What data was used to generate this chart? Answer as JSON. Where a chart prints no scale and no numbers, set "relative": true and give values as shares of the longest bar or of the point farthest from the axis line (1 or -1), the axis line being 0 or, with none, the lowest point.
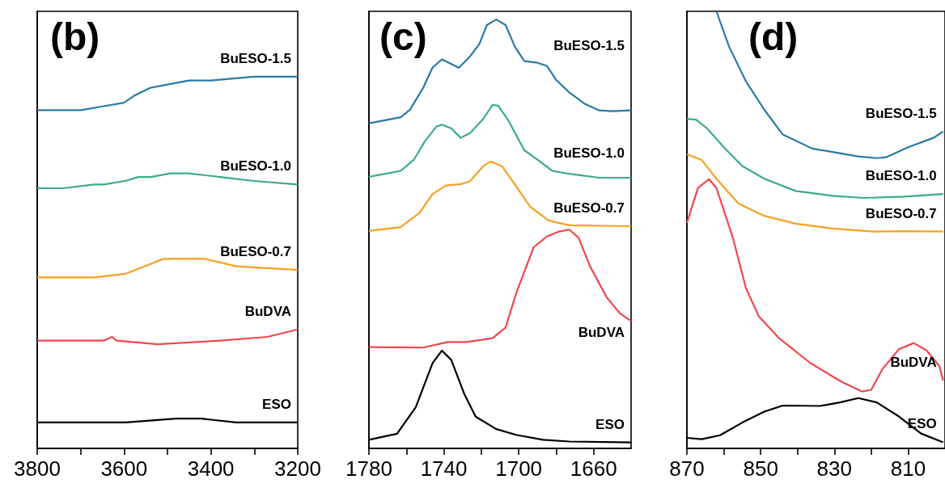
{
  "chart_data": [
    {
      "type": "line",
      "title": "(b)",
      "relative": true,
      "tick_labels": "x",
      "xlim": [
        3800,
        3200
      ],
      "xticks": [
        3800,
        {
          "value": 3700,
          "label": null
        },
        3600,
        {
          "value": 3500,
          "label": null
        },
        3400,
        {
          "value": 3300,
          "label": null
        },
        3200
      ],
      "series": [
        {
          "name": "BuESO-1.5",
          "color": "#2a7aa5",
          "x": [
            3800,
            3750,
            3700,
            3650,
            3600,
            3575,
            3540,
            3495,
            3450,
            3400,
            3300,
            3250,
            3200
          ],
          "values": [
            0.91,
            0.91,
            0.91,
            0.92,
            0.93,
            0.95,
            0.97,
            0.98,
            0.99,
            0.99,
            1.0,
            1.0,
            1.0
          ]
        },
        {
          "name": "BuESO-1.0",
          "color": "#3aab8b",
          "x": [
            3800,
            3741,
            3668,
            3646,
            3596,
            3567,
            3538,
            3494,
            3451,
            3378,
            3306,
            3200
          ],
          "values": [
            0.7,
            0.7,
            0.71,
            0.71,
            0.72,
            0.73,
            0.73,
            0.74,
            0.74,
            0.73,
            0.72,
            0.71
          ]
        },
        {
          "name": "BuESO-0.7",
          "color": "#f7a024",
          "x": [
            3800,
            3668,
            3596,
            3552,
            3509,
            3451,
            3415,
            3342,
            3200
          ],
          "values": [
            0.46,
            0.46,
            0.47,
            0.49,
            0.51,
            0.51,
            0.51,
            0.49,
            0.48
          ]
        },
        {
          "name": "BuDVA",
          "color": "#f2474c",
          "x": [
            3800,
            3704,
            3646,
            3628,
            3617,
            3523,
            3378,
            3270,
            3200
          ],
          "values": [
            0.29,
            0.29,
            0.29,
            0.3,
            0.29,
            0.28,
            0.29,
            0.3,
            0.32
          ]
        },
        {
          "name": "ESO",
          "color": "#000000",
          "x": [
            3800,
            3596,
            3480,
            3422,
            3342,
            3200
          ],
          "values": [
            0.07,
            0.07,
            0.08,
            0.08,
            0.07,
            0.07
          ]
        }
      ]
    },
    {
      "type": "line",
      "title": "(c)",
      "relative": true,
      "tick_labels": "x",
      "xlim": [
        1780,
        1640
      ],
      "xticks": [
        1780,
        {
          "value": 1760,
          "label": null
        },
        1740,
        {
          "value": 1720,
          "label": null
        },
        1700,
        {
          "value": 1680,
          "label": null
        },
        1660
      ],
      "series": [
        {
          "name": "BuESO-1.5",
          "color": "#2a7aa5",
          "x": [
            1780,
            1763,
            1758,
            1751,
            1746,
            1741,
            1736,
            1732,
            1726,
            1721,
            1717,
            1712,
            1707,
            1702,
            1697,
            1690,
            1685,
            1680,
            1673,
            1665,
            1657,
            1650,
            1640
          ],
          "values": [
            0.758,
            0.772,
            0.79,
            0.841,
            0.888,
            0.907,
            0.896,
            0.887,
            0.914,
            0.943,
            0.987,
            1.0,
            0.987,
            0.936,
            0.903,
            0.899,
            0.892,
            0.859,
            0.83,
            0.804,
            0.788,
            0.786,
            0.788
          ]
        },
        {
          "name": "BuESO-1.0",
          "color": "#3aab8b",
          "x": [
            1780,
            1763,
            1756,
            1750,
            1744,
            1741,
            1736,
            1731,
            1726,
            1719,
            1714,
            1711,
            1706,
            1697,
            1690,
            1682,
            1673,
            1657,
            1640
          ],
          "values": [
            0.633,
            0.647,
            0.673,
            0.717,
            0.75,
            0.755,
            0.746,
            0.724,
            0.735,
            0.768,
            0.801,
            0.799,
            0.768,
            0.695,
            0.673,
            0.647,
            0.64,
            0.631,
            0.631
          ]
        },
        {
          "name": "BuESO-0.7",
          "color": "#f7a024",
          "x": [
            1780,
            1763,
            1753,
            1746,
            1739,
            1731,
            1726,
            1719,
            1715,
            1709,
            1702,
            1694,
            1684,
            1673,
            1640
          ],
          "values": [
            0.507,
            0.516,
            0.549,
            0.593,
            0.613,
            0.616,
            0.623,
            0.658,
            0.669,
            0.658,
            0.615,
            0.564,
            0.531,
            0.52,
            0.518
          ]
        },
        {
          "name": "BuDVA",
          "color": "#f2474c",
          "x": [
            1780,
            1751,
            1738,
            1728,
            1714,
            1707,
            1701,
            1692,
            1685,
            1679,
            1673,
            1668,
            1662,
            1653,
            1646,
            1640
          ],
          "values": [
            0.236,
            0.235,
            0.248,
            0.248,
            0.257,
            0.282,
            0.366,
            0.469,
            0.494,
            0.505,
            0.51,
            0.491,
            0.425,
            0.352,
            0.315,
            0.297
          ]
        },
        {
          "name": "ESO",
          "color": "#000000",
          "x": [
            1780,
            1765,
            1755,
            1746,
            1741,
            1736,
            1729,
            1723,
            1712,
            1701,
            1687,
            1673,
            1640
          ],
          "values": [
            0.02,
            0.034,
            0.096,
            0.199,
            0.228,
            0.206,
            0.126,
            0.074,
            0.045,
            0.031,
            0.02,
            0.016,
            0.014
          ]
        }
      ]
    },
    {
      "type": "line",
      "title": "(d)",
      "relative": true,
      "tick_labels": "x",
      "xlim": [
        870,
        800
      ],
      "xticks": [
        870,
        {
          "value": 860,
          "label": null
        },
        850,
        {
          "value": 840,
          "label": null
        },
        830,
        {
          "value": 820,
          "label": null
        },
        810
      ],
      "series": [
        {
          "name": "BuESO-1.5",
          "color": "#2a7aa5",
          "x": [
            862,
            858.5,
            854,
            849,
            844,
            836,
            830.5,
            823.5,
            818.5,
            816,
            810,
            803,
            800.5
          ],
          "values": [
            1.0,
            0.918,
            0.84,
            0.775,
            0.718,
            0.686,
            0.678,
            0.668,
            0.664,
            0.666,
            0.689,
            0.711,
            0.725
          ]
        },
        {
          "name": "BuESO-1.0",
          "color": "#3aab8b",
          "x": [
            870,
            867.5,
            864.5,
            860,
            855,
            849,
            840.5,
            830.5,
            822,
            811,
            800.5
          ],
          "values": [
            0.754,
            0.752,
            0.732,
            0.689,
            0.646,
            0.617,
            0.589,
            0.578,
            0.573,
            0.576,
            0.582
          ]
        },
        {
          "name": "BuESO-0.7",
          "color": "#f7a024",
          "x": [
            870,
            866,
            862,
            856,
            849,
            840.5,
            830.5,
            819.5,
            811,
            800.5
          ],
          "values": [
            0.673,
            0.66,
            0.617,
            0.56,
            0.532,
            0.514,
            0.503,
            0.496,
            0.497,
            0.496
          ]
        },
        {
          "name": "BuDVA",
          "color": "#f2474c",
          "x": [
            870,
            867,
            864,
            862,
            857.5,
            854,
            850.5,
            845,
            836.5,
            828,
            822.5,
            820,
            817,
            812.5,
            808.5,
            805,
            801.5,
            800.5
          ],
          "values": [
            0.516,
            0.596,
            0.616,
            0.596,
            0.481,
            0.367,
            0.302,
            0.252,
            0.195,
            0.152,
            0.13,
            0.134,
            0.181,
            0.227,
            0.241,
            0.224,
            0.188,
            0.155
          ]
        },
        {
          "name": "ESO",
          "color": "#000000",
          "x": [
            870,
            866,
            861,
            855,
            849,
            844,
            834,
            828.5,
            823.5,
            818.5,
            812.5,
            806.5,
            800.5
          ],
          "values": [
            0.024,
            0.021,
            0.03,
            0.059,
            0.084,
            0.098,
            0.097,
            0.105,
            0.115,
            0.105,
            0.073,
            0.034,
            0.014
          ]
        }
      ]
    }
  ]
}
